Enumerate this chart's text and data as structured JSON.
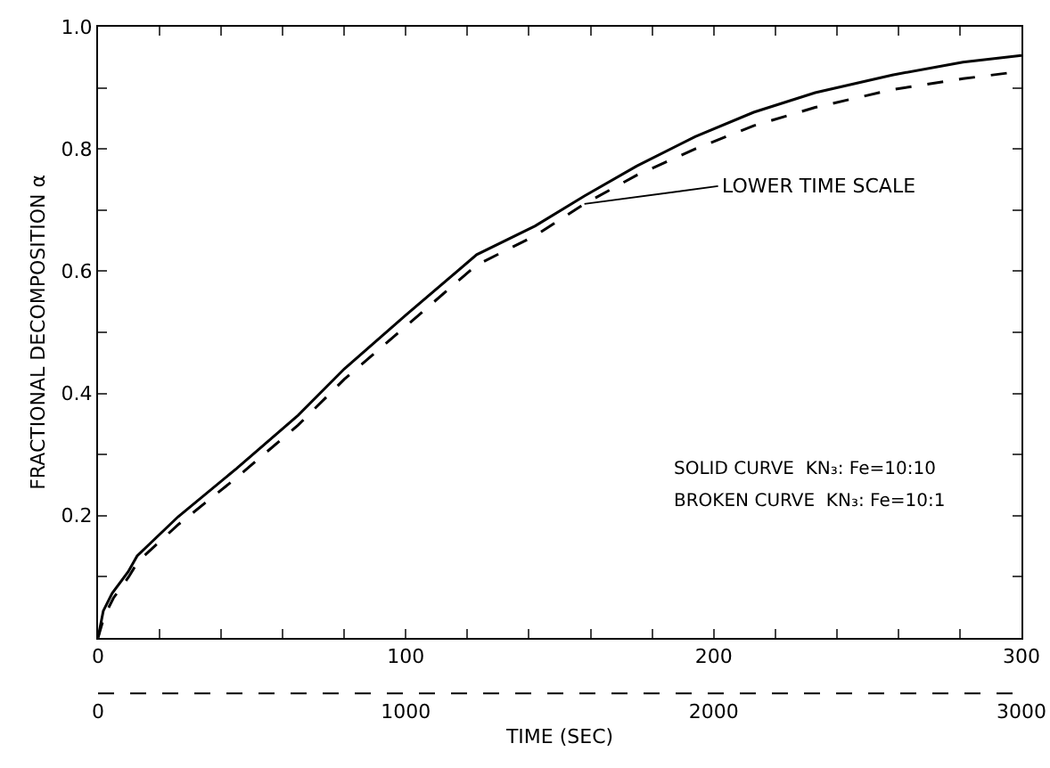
{
  "chart_data": {
    "type": "line",
    "xlabel": "TIME (SEC)",
    "ylabel": "FRACTIONAL DECOMPOSITION α",
    "xlim": [
      0,
      300
    ],
    "xticks": [
      0,
      {
        "value": 20,
        "label": null
      },
      {
        "value": 40,
        "label": null
      },
      {
        "value": 60,
        "label": null
      },
      {
        "value": 80,
        "label": null
      },
      100,
      {
        "value": 120,
        "label": null
      },
      {
        "value": 140,
        "label": null
      },
      {
        "value": 160,
        "label": null
      },
      {
        "value": 180,
        "label": null
      },
      200,
      {
        "value": 220,
        "label": null
      },
      {
        "value": 240,
        "label": null
      },
      {
        "value": 260,
        "label": null
      },
      {
        "value": 280,
        "label": null
      },
      300
    ],
    "x2lim": [
      0,
      3000
    ],
    "x2ticks": [
      0,
      1000,
      2000,
      3000
    ],
    "ylim": [
      0,
      1
    ],
    "yticks": [
      {
        "value": 0.1,
        "label": null
      },
      0.2,
      {
        "value": 0.3,
        "label": null
      },
      0.4,
      {
        "value": 0.5,
        "label": null
      },
      0.6,
      {
        "value": 0.7,
        "label": null
      },
      0.8,
      {
        "value": 0.9,
        "label": null
      },
      {
        "value": 1,
        "label": "1.0"
      }
    ],
    "grid": false,
    "marker": "none",
    "series": [
      {
        "color": "#000000",
        "line_style": "solid",
        "x": [
          0,
          1.7,
          4.6,
          9.8,
          12.7,
          26,
          45,
          65,
          80,
          100,
          123,
          142,
          158,
          175,
          194,
          213,
          233,
          258,
          281,
          300
        ],
        "values": [
          0,
          0.044,
          0.073,
          0.108,
          0.134,
          0.198,
          0.277,
          0.364,
          0.44,
          0.528,
          0.627,
          0.674,
          0.723,
          0.772,
          0.82,
          0.86,
          0.892,
          0.921,
          0.942,
          0.953
        ]
      },
      {
        "color": "#000000",
        "line_style": "dashed",
        "axis": "x2",
        "x": [
          0,
          20,
          50,
          100,
          130,
          260,
          450,
          650,
          800,
          1000,
          1230,
          1420,
          1580,
          1750,
          1940,
          2130,
          2330,
          2580,
          2810,
          3000
        ],
        "values": [
          0,
          0.035,
          0.065,
          0.1,
          0.125,
          0.185,
          0.262,
          0.348,
          0.423,
          0.51,
          0.61,
          0.658,
          0.71,
          0.757,
          0.8,
          0.838,
          0.868,
          0.897,
          0.915,
          0.927
        ]
      }
    ],
    "annotations": [
      {
        "text": "LOWER TIME SCALE",
        "x": 158,
        "y": 0.71
      },
      "SOLID CURVE  KN₃: Fe=10:10",
      "BROKEN CURVE  KN₃: Fe=10:1"
    ]
  }
}
